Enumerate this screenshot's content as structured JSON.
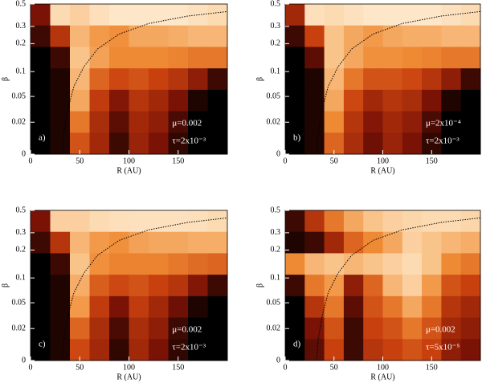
{
  "chart_data": [
    {
      "type": "heatmap",
      "label": "a)",
      "annotations": [
        "μ=0.002",
        "τ=2x10⁻³"
      ],
      "xlabel": "R (AU)",
      "ylabel": "β",
      "xlim": [
        0,
        200
      ],
      "xticks": [
        0,
        50,
        100,
        150
      ],
      "ylim": [
        0,
        0.5
      ],
      "yticks": [
        0,
        0.02,
        0.05,
        0.1,
        0.2,
        0.3,
        0.5
      ],
      "colormap": [
        "#000000",
        "#7a1206",
        "#c8400e",
        "#ef8a34",
        "#f9c48a",
        "#fff1dc"
      ],
      "z": [
        [
          0.2,
          0.9,
          0.85,
          0.92,
          0.95,
          0.95,
          0.95,
          0.95,
          0.93,
          0.9
        ],
        [
          0.1,
          0.35,
          0.75,
          0.65,
          0.62,
          0.7,
          0.7,
          0.72,
          0.75,
          0.75
        ],
        [
          0.0,
          0.1,
          0.8,
          0.68,
          0.6,
          0.6,
          0.6,
          0.58,
          0.55,
          0.55
        ],
        [
          0.0,
          0.05,
          0.75,
          0.5,
          0.42,
          0.45,
          0.4,
          0.35,
          0.25,
          0.1
        ],
        [
          0.0,
          0.05,
          0.7,
          0.38,
          0.22,
          0.35,
          0.3,
          0.2,
          0.05,
          0.0
        ],
        [
          0.0,
          0.05,
          0.55,
          0.32,
          0.15,
          0.3,
          0.25,
          0.12,
          0.0,
          0.0
        ],
        [
          0.0,
          0.05,
          0.45,
          0.3,
          0.1,
          0.28,
          0.2,
          0.08,
          0.0,
          0.0
        ]
      ]
    },
    {
      "type": "heatmap",
      "label": "b)",
      "annotations": [
        "μ=2x10⁻⁴",
        "τ=2x10⁻³"
      ],
      "xlabel": "R (AU)",
      "ylabel": "β",
      "xlim": [
        0,
        200
      ],
      "xticks": [
        0,
        50,
        100,
        150
      ],
      "ylim": [
        0,
        0.5
      ],
      "yticks": [
        0,
        0.02,
        0.05,
        0.1,
        0.2,
        0.3,
        0.5
      ],
      "colormap": [
        "#000000",
        "#7a1206",
        "#c8400e",
        "#ef8a34",
        "#f9c48a",
        "#fff1dc"
      ],
      "z": [
        [
          0.3,
          0.92,
          0.9,
          0.93,
          0.95,
          0.95,
          0.95,
          0.95,
          0.93,
          0.9
        ],
        [
          0.1,
          0.4,
          0.8,
          0.7,
          0.65,
          0.7,
          0.72,
          0.72,
          0.75,
          0.75
        ],
        [
          0.0,
          0.15,
          0.8,
          0.7,
          0.62,
          0.62,
          0.6,
          0.58,
          0.55,
          0.55
        ],
        [
          0.0,
          0.05,
          0.75,
          0.55,
          0.45,
          0.45,
          0.42,
          0.35,
          0.25,
          0.1
        ],
        [
          0.0,
          0.05,
          0.7,
          0.42,
          0.3,
          0.35,
          0.32,
          0.2,
          0.05,
          0.0
        ],
        [
          0.0,
          0.05,
          0.6,
          0.35,
          0.22,
          0.3,
          0.25,
          0.12,
          0.0,
          0.0
        ],
        [
          0.0,
          0.05,
          0.5,
          0.32,
          0.18,
          0.28,
          0.2,
          0.08,
          0.0,
          0.0
        ]
      ]
    },
    {
      "type": "heatmap",
      "label": "c)",
      "annotations": [
        "μ=0.002",
        "τ=2x10⁻³"
      ],
      "xlabel": "R (AU)",
      "ylabel": "β",
      "xlim": [
        0,
        200
      ],
      "xticks": [
        0,
        50,
        100,
        150
      ],
      "ylim": [
        0,
        0.5
      ],
      "yticks": [
        0,
        0.02,
        0.05,
        0.1,
        0.2,
        0.3,
        0.5
      ],
      "colormap": [
        "#000000",
        "#7a1206",
        "#c8400e",
        "#ef8a34",
        "#f9c48a",
        "#fff1dc"
      ],
      "z": [
        [
          0.2,
          0.85,
          0.85,
          0.9,
          0.92,
          0.93,
          0.93,
          0.93,
          0.92,
          0.9
        ],
        [
          0.1,
          0.35,
          0.75,
          0.65,
          0.62,
          0.68,
          0.7,
          0.7,
          0.72,
          0.72
        ],
        [
          0.0,
          0.1,
          0.8,
          0.62,
          0.58,
          0.58,
          0.58,
          0.55,
          0.52,
          0.5
        ],
        [
          0.0,
          0.05,
          0.72,
          0.48,
          0.42,
          0.45,
          0.4,
          0.35,
          0.22,
          0.1
        ],
        [
          0.0,
          0.05,
          0.65,
          0.38,
          0.2,
          0.38,
          0.3,
          0.18,
          0.05,
          0.0
        ],
        [
          0.0,
          0.05,
          0.5,
          0.32,
          0.12,
          0.32,
          0.25,
          0.1,
          0.0,
          0.0
        ],
        [
          0.0,
          0.05,
          0.42,
          0.3,
          0.08,
          0.3,
          0.2,
          0.08,
          0.0,
          0.0
        ]
      ]
    },
    {
      "type": "heatmap",
      "label": "d)",
      "annotations": [
        "μ=0.002",
        "τ=5x10⁻⁵"
      ],
      "xlabel": "R (AU)",
      "ylabel": "β",
      "xlim": [
        0,
        200
      ],
      "xticks": [
        0,
        50,
        100,
        150
      ],
      "ylim": [
        0,
        0.5
      ],
      "yticks": [
        0,
        0.02,
        0.05,
        0.1,
        0.2,
        0.3,
        0.5
      ],
      "colormap": [
        "#000000",
        "#7a1206",
        "#c8400e",
        "#ef8a34",
        "#f9c48a",
        "#fff1dc"
      ],
      "z": [
        [
          0.1,
          0.35,
          0.55,
          0.7,
          0.8,
          0.85,
          0.88,
          0.9,
          0.9,
          0.88
        ],
        [
          0.05,
          0.1,
          0.3,
          0.5,
          0.6,
          0.7,
          0.85,
          0.8,
          0.75,
          0.72
        ],
        [
          0.6,
          0.75,
          0.8,
          0.75,
          0.8,
          0.85,
          0.9,
          0.8,
          0.6,
          0.55
        ],
        [
          0.1,
          0.55,
          0.65,
          0.25,
          0.5,
          0.75,
          0.85,
          0.65,
          0.45,
          0.4
        ],
        [
          0.0,
          0.35,
          0.55,
          0.15,
          0.45,
          0.55,
          0.7,
          0.55,
          0.35,
          0.3
        ],
        [
          0.0,
          0.2,
          0.45,
          0.1,
          0.4,
          0.45,
          0.55,
          0.45,
          0.3,
          0.25
        ],
        [
          0.0,
          0.15,
          0.4,
          0.1,
          0.35,
          0.4,
          0.45,
          0.4,
          0.25,
          0.2
        ]
      ]
    }
  ]
}
